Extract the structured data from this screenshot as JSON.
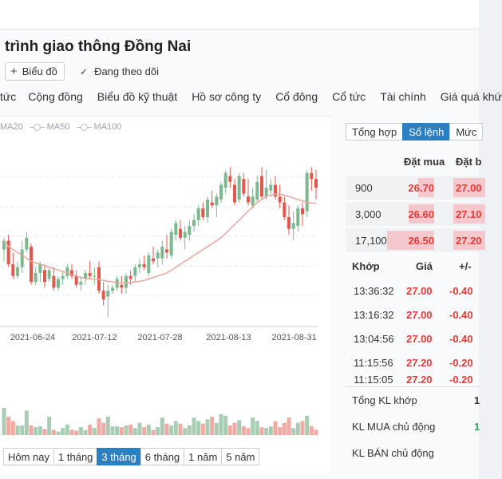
{
  "header": {
    "title": "trình giao thông Đồng Nai",
    "chart_button": "Biểu đồ",
    "follow_label": "Đang theo dõi"
  },
  "nav_tabs": [
    "tức",
    "Cộng đồng",
    "Biểu đồ kỹ thuật",
    "Hồ sơ công ty",
    "Cổ đông",
    "Cổ tức",
    "Tài chính",
    "Giá quá khứ"
  ],
  "legend": [
    "MA20",
    "MA50",
    "MA100"
  ],
  "colors": {
    "up": "#7cb98e",
    "down": "#e0584e",
    "ma": "#e8a79f",
    "accent": "#2b7fc3",
    "price_red": "#e53935",
    "buy_green": "#2aa84a"
  },
  "ranges": [
    {
      "label": "Hôm nay",
      "active": false
    },
    {
      "label": "1 tháng",
      "active": false
    },
    {
      "label": "3 tháng",
      "active": true
    },
    {
      "label": "6 tháng",
      "active": false
    },
    {
      "label": "1 năm",
      "active": false
    },
    {
      "label": "5 năm",
      "active": false
    }
  ],
  "chart_data": {
    "type": "candlestick",
    "x_ticks": [
      "2021-06-24",
      "2021-07-12",
      "2021-07-28",
      "2021-08-13",
      "2021-08-31"
    ],
    "candles": [
      [
        27.9,
        28.3,
        27.5,
        28.2
      ],
      [
        28.2,
        28.4,
        27.3,
        27.4
      ],
      [
        27.4,
        27.8,
        26.9,
        27.0
      ],
      [
        27.0,
        27.5,
        26.9,
        27.3
      ],
      [
        27.3,
        28.2,
        27.1,
        27.9
      ],
      [
        27.9,
        28.5,
        27.8,
        28.3
      ],
      [
        28.0,
        28.1,
        26.7,
        26.8
      ],
      [
        26.8,
        27.3,
        26.7,
        27.1
      ],
      [
        27.1,
        27.5,
        26.8,
        27.4
      ],
      [
        27.2,
        27.4,
        26.6,
        26.8
      ],
      [
        26.9,
        27.3,
        26.8,
        27.2
      ],
      [
        27.0,
        27.3,
        26.5,
        26.6
      ],
      [
        26.6,
        27.0,
        26.5,
        26.9
      ],
      [
        26.9,
        27.2,
        26.7,
        27.0
      ],
      [
        27.0,
        27.4,
        26.9,
        27.3
      ],
      [
        27.2,
        27.4,
        26.9,
        27.0
      ],
      [
        27.0,
        27.2,
        26.6,
        26.7
      ],
      [
        26.7,
        27.0,
        26.5,
        26.8
      ],
      [
        26.9,
        27.2,
        26.7,
        27.1
      ],
      [
        27.1,
        27.5,
        26.9,
        27.0
      ],
      [
        27.0,
        27.3,
        26.7,
        27.0
      ],
      [
        27.3,
        27.5,
        26.4,
        26.5
      ],
      [
        26.5,
        26.8,
        26.0,
        26.2
      ],
      [
        26.3,
        26.7,
        25.6,
        26.5
      ],
      [
        26.5,
        26.7,
        26.4,
        26.6
      ],
      [
        26.6,
        27.0,
        26.5,
        26.9
      ],
      [
        26.7,
        27.0,
        26.4,
        26.6
      ],
      [
        26.6,
        27.1,
        26.4,
        27.0
      ],
      [
        27.0,
        27.2,
        26.7,
        26.9
      ],
      [
        27.0,
        27.4,
        26.8,
        27.3
      ],
      [
        27.3,
        27.6,
        27.1,
        27.4
      ],
      [
        27.4,
        27.7,
        27.2,
        27.3
      ],
      [
        27.1,
        27.8,
        27.0,
        27.7
      ],
      [
        27.6,
        28.0,
        27.4,
        27.5
      ],
      [
        27.6,
        27.9,
        27.3,
        27.8
      ],
      [
        27.6,
        28.2,
        27.4,
        28.0
      ],
      [
        27.9,
        28.4,
        27.6,
        27.8
      ],
      [
        27.7,
        28.6,
        27.6,
        28.5
      ],
      [
        28.4,
        28.9,
        28.2,
        28.8
      ],
      [
        28.6,
        28.9,
        28.2,
        28.3
      ],
      [
        28.3,
        28.7,
        27.9,
        28.5
      ],
      [
        28.4,
        28.9,
        28.2,
        28.7
      ],
      [
        28.7,
        29.1,
        28.5,
        28.9
      ],
      [
        28.9,
        29.4,
        28.7,
        29.3
      ],
      [
        29.3,
        29.5,
        28.9,
        29.0
      ],
      [
        29.0,
        29.7,
        28.8,
        29.6
      ],
      [
        29.5,
        29.9,
        29.3,
        29.4
      ],
      [
        29.4,
        29.8,
        29.0,
        29.7
      ],
      [
        29.6,
        30.2,
        29.5,
        30.1
      ],
      [
        30.0,
        30.6,
        29.8,
        30.5
      ],
      [
        30.4,
        30.7,
        30.0,
        30.2
      ],
      [
        30.1,
        30.3,
        29.4,
        29.5
      ],
      [
        29.6,
        30.5,
        29.5,
        30.4
      ],
      [
        30.3,
        30.5,
        29.7,
        29.8
      ],
      [
        29.7,
        30.3,
        29.4,
        29.5
      ],
      [
        29.4,
        30.0,
        29.3,
        29.7
      ],
      [
        29.6,
        30.4,
        29.5,
        30.2
      ],
      [
        30.4,
        30.7,
        29.6,
        29.7
      ],
      [
        29.7,
        30.6,
        29.6,
        30.0
      ],
      [
        29.9,
        30.3,
        29.7,
        30.1
      ],
      [
        30.1,
        30.4,
        29.6,
        29.7
      ],
      [
        29.7,
        30.1,
        29.3,
        29.5
      ],
      [
        29.5,
        29.7,
        28.9,
        29.0
      ],
      [
        29.0,
        29.4,
        28.4,
        28.6
      ],
      [
        28.6,
        29.2,
        28.2,
        28.8
      ],
      [
        28.7,
        29.4,
        28.5,
        29.3
      ],
      [
        29.3,
        29.5,
        28.7,
        29.1
      ],
      [
        29.2,
        30.6,
        29.0,
        30.5
      ],
      [
        30.5,
        30.7,
        29.9,
        30.3
      ],
      [
        30.3,
        30.6,
        29.6,
        30.0
      ]
    ],
    "ma": [
      28.2,
      28.0,
      27.9,
      27.8,
      27.7,
      27.6,
      27.5,
      27.45,
      27.4,
      27.35,
      27.3,
      27.25,
      27.2,
      27.15,
      27.1,
      27.05,
      27.0,
      26.95,
      26.92,
      26.9,
      26.9,
      26.88,
      26.85,
      26.82,
      26.8,
      26.78,
      26.77,
      26.77,
      26.78,
      26.8,
      26.82,
      26.85,
      26.9,
      26.95,
      27.0,
      27.05,
      27.1,
      27.2,
      27.3,
      27.4,
      27.5,
      27.6,
      27.7,
      27.8,
      27.9,
      28.0,
      28.1,
      28.2,
      28.3,
      28.45,
      28.6,
      28.75,
      28.9,
      29.05,
      29.2,
      29.35,
      29.5,
      29.6,
      29.7,
      29.75,
      29.78,
      29.78,
      29.75,
      29.7,
      29.65,
      29.6,
      29.55,
      29.5,
      29.48,
      29.47
    ],
    "volumes": [
      31,
      21,
      16,
      11,
      11,
      28,
      11,
      9,
      10,
      7,
      21,
      6,
      4,
      8,
      12,
      6,
      5,
      9,
      6,
      12,
      8,
      19,
      14,
      21,
      10,
      10,
      9,
      11,
      12,
      8,
      14,
      9,
      12,
      6,
      9,
      20,
      13,
      11,
      16,
      13,
      8,
      11,
      20,
      16,
      13,
      18,
      21,
      14,
      24,
      22,
      11,
      14,
      17,
      10,
      8,
      20,
      16,
      9,
      8,
      10,
      16,
      9,
      14,
      20,
      8,
      14,
      16,
      22,
      10,
      6
    ],
    "ylim": [
      25.5,
      30.9
    ]
  },
  "right_tabs": [
    {
      "label": "Tổng hợp",
      "active": false
    },
    {
      "label": "Sổ lệnh",
      "active": true
    },
    {
      "label": "Mức",
      "active": false
    }
  ],
  "orderbook": {
    "bid_header": "Đặt mua",
    "ask_header": "Đặt b",
    "rows": [
      {
        "volume": "900",
        "bid": "26.70",
        "ask": "27.00",
        "bar": 0.26
      },
      {
        "volume": "3,000",
        "bid": "26.60",
        "ask": "27.10",
        "bar": 0.42
      },
      {
        "volume": "17,100",
        "bid": "26.50",
        "ask": "27.20",
        "bar": 0.78
      }
    ]
  },
  "trades": {
    "headers": {
      "time": "Khớp",
      "price": "Giá",
      "change": "+/-"
    },
    "rows": [
      {
        "time": "13:36:32",
        "price": "27.00",
        "change": "-0.40"
      },
      {
        "time": "13:16:32",
        "price": "27.00",
        "change": "-0.40"
      },
      {
        "time": "13:04:56",
        "price": "27.00",
        "change": "-0.40"
      },
      {
        "time": "11:15:56",
        "price": "27.20",
        "change": "-0.20"
      },
      {
        "time": "11:15:05",
        "price": "27.20",
        "change": "-0.20"
      }
    ]
  },
  "summary": [
    {
      "label": "Tổng KL khớp",
      "value": "1"
    },
    {
      "label": "KL MUA chủ động",
      "value": "1"
    },
    {
      "label": "KL BÁN chủ động",
      "value": ""
    }
  ]
}
